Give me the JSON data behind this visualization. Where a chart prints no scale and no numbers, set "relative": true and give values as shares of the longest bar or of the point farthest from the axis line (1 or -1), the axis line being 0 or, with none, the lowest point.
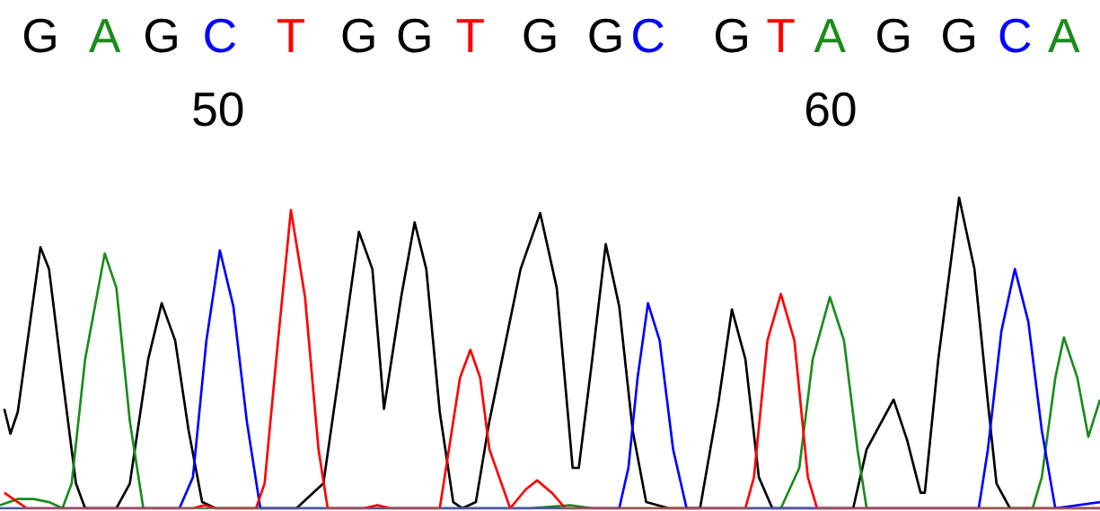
{
  "chart_data": {
    "type": "line",
    "relative": true,
    "tick_labels": "x",
    "marker": "none",
    "line_style": "solid",
    "xlim": [
      46.44,
      64.4
    ],
    "xticks": [
      50,
      60
    ],
    "annotations": [
      "G",
      "A",
      "G",
      "C",
      "T",
      "G",
      "G",
      "T",
      "G",
      "G",
      "C",
      "G",
      "T",
      "A",
      "G",
      "G",
      "C",
      "A"
    ],
    "series": [
      {
        "color": "#000000",
        "x": [
          46.51,
          46.61,
          46.73,
          47.1,
          47.24,
          47.46,
          47.68,
          47.83,
          48.34,
          48.56,
          48.86,
          49.08,
          49.3,
          49.52,
          49.74,
          49.96,
          51.28,
          51.72,
          52.01,
          52.3,
          52.52,
          52.71,
          52.99,
          53.21,
          53.4,
          53.62,
          53.84,
          53.99,
          54.21,
          54.43,
          54.94,
          55.26,
          55.53,
          55.79,
          55.89,
          56.11,
          56.33,
          56.55,
          56.77,
          56.99,
          57.36,
          57.87,
          58.17,
          58.39,
          58.61,
          58.83,
          59.05,
          60.37,
          60.59,
          61.03,
          61.25,
          61.47,
          61.54,
          61.76,
          62.1,
          62.35,
          62.57,
          62.71,
          62.93,
          64.4
        ],
        "values": [
          0.32,
          0.24,
          0.31,
          0.84,
          0.77,
          0.42,
          0.08,
          0,
          0,
          0.08,
          0.48,
          0.66,
          0.54,
          0.25,
          0.02,
          0,
          0,
          0.08,
          0.48,
          0.89,
          0.77,
          0.32,
          0.68,
          0.92,
          0.77,
          0.31,
          0.02,
          0,
          0.02,
          0.28,
          0.77,
          0.95,
          0.71,
          0.13,
          0.13,
          0.48,
          0.85,
          0.65,
          0.25,
          0.02,
          0,
          0,
          0.34,
          0.64,
          0.48,
          0.1,
          0,
          0,
          0.19,
          0.35,
          0.22,
          0.05,
          0.05,
          0.48,
          1,
          0.77,
          0.34,
          0.08,
          0,
          0
        ]
      },
      {
        "color": "#1a8c1a",
        "x": [
          46.44,
          46.73,
          46.99,
          47.24,
          47.46,
          47.61,
          47.83,
          48.15,
          48.34,
          48.56,
          48.78,
          55.09,
          55.75,
          56.11,
          59.19,
          59.49,
          59.71,
          59.99,
          60.22,
          60.44,
          60.59,
          63.3,
          63.45,
          63.67,
          63.81,
          64.03,
          64.21,
          64.4
        ],
        "values": [
          0.01,
          0.03,
          0.03,
          0.02,
          0,
          0.08,
          0.48,
          0.82,
          0.71,
          0.28,
          0,
          0,
          0.01,
          0,
          0,
          0.13,
          0.48,
          0.68,
          0.54,
          0.19,
          0,
          0,
          0.1,
          0.42,
          0.55,
          0.42,
          0.23,
          0.35
        ]
      },
      {
        "color": "#0000ff",
        "x": [
          46.44,
          49.37,
          49.59,
          49.81,
          50.03,
          50.25,
          50.47,
          50.69,
          56.55,
          56.7,
          56.85,
          57.02,
          57.21,
          57.43,
          57.65,
          62.42,
          62.57,
          62.79,
          63.01,
          63.23,
          63.45,
          63.67,
          64.4
        ],
        "values": [
          0,
          0,
          0.1,
          0.54,
          0.83,
          0.65,
          0.28,
          0,
          0,
          0.13,
          0.42,
          0.66,
          0.54,
          0.19,
          0,
          0,
          0.19,
          0.57,
          0.77,
          0.6,
          0.25,
          0,
          0.02
        ]
      },
      {
        "color": "#ff0000",
        "x": [
          46.51,
          46.73,
          46.88,
          49.59,
          49.78,
          49.96,
          50.62,
          50.76,
          50.98,
          51.19,
          51.42,
          51.64,
          51.79,
          52.38,
          52.6,
          52.82,
          53.62,
          53.77,
          53.95,
          54.12,
          54.28,
          54.43,
          54.77,
          55.02,
          55.21,
          55.45,
          55.67,
          58.61,
          58.75,
          58.97,
          59.19,
          59.41,
          59.63,
          59.78,
          64.4
        ],
        "values": [
          0.05,
          0.02,
          0,
          0,
          0.01,
          0,
          0,
          0.08,
          0.54,
          0.96,
          0.68,
          0.19,
          0,
          0,
          0.01,
          0,
          0,
          0.19,
          0.42,
          0.51,
          0.42,
          0.19,
          0.0,
          0.06,
          0.09,
          0.05,
          0,
          0,
          0.1,
          0.54,
          0.69,
          0.54,
          0.1,
          0,
          0
        ]
      }
    ]
  }
}
